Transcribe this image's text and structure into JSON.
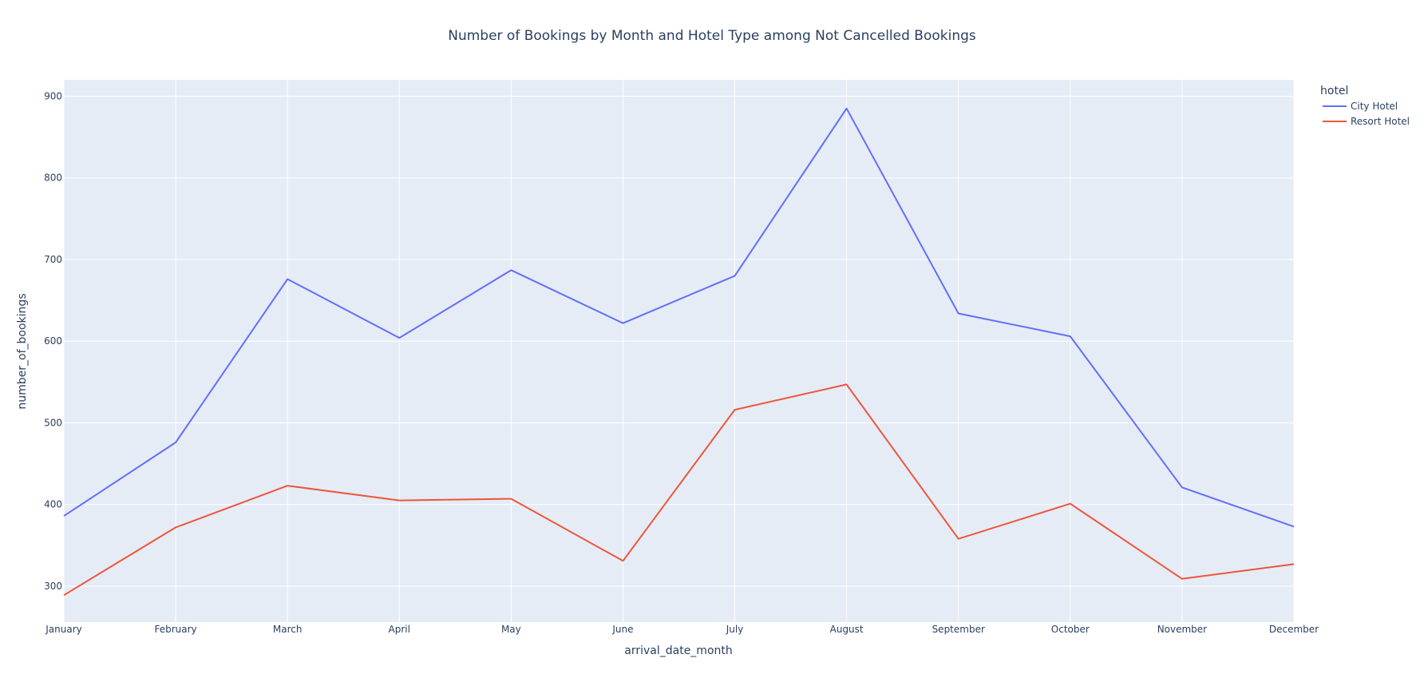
{
  "chart_data": {
    "type": "line",
    "title": "Number of Bookings by Month and Hotel Type among Not Cancelled Bookings",
    "xlabel": "arrival_date_month",
    "ylabel": "number_of_bookings",
    "categories": [
      "January",
      "February",
      "March",
      "April",
      "May",
      "June",
      "July",
      "August",
      "September",
      "October",
      "November",
      "December"
    ],
    "ylim": [
      256,
      920
    ],
    "yticks": [
      300,
      400,
      500,
      600,
      700,
      800,
      900
    ],
    "grid": true,
    "legend": {
      "title": "hotel",
      "placement": "top-right-outside"
    },
    "series": [
      {
        "name": "City Hotel",
        "color": "#636efa",
        "values": [
          386,
          476,
          676,
          604,
          687,
          622,
          680,
          885,
          634,
          606,
          421,
          373
        ]
      },
      {
        "name": "Resort Hotel",
        "color": "#ef553b",
        "values": [
          289,
          372,
          423,
          405,
          407,
          331,
          516,
          547,
          358,
          401,
          309,
          327
        ]
      }
    ]
  }
}
